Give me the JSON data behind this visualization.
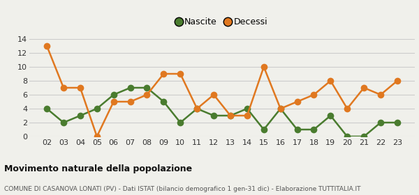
{
  "years": [
    "02",
    "03",
    "04",
    "05",
    "06",
    "07",
    "08",
    "09",
    "10",
    "11",
    "12",
    "13",
    "14",
    "15",
    "16",
    "17",
    "18",
    "19",
    "20",
    "21",
    "22",
    "23"
  ],
  "nascite": [
    4,
    2,
    3,
    4,
    6,
    7,
    7,
    5,
    2,
    4,
    3,
    3,
    4,
    1,
    4,
    1,
    1,
    3,
    0,
    0,
    2,
    2
  ],
  "decessi": [
    13,
    7,
    7,
    0,
    5,
    5,
    6,
    9,
    9,
    4,
    6,
    3,
    3,
    10,
    4,
    5,
    6,
    8,
    4,
    7,
    6,
    8
  ],
  "nascite_color": "#4a7c2f",
  "decessi_color": "#e07820",
  "background_color": "#f0f0eb",
  "grid_color": "#cccccc",
  "ylim": [
    0,
    14
  ],
  "yticks": [
    0,
    2,
    4,
    6,
    8,
    10,
    12,
    14
  ],
  "title": "Movimento naturale della popolazione",
  "subtitle": "COMUNE DI CASANOVA LONATI (PV) - Dati ISTAT (bilancio demografico 1 gen-31 dic) - Elaborazione TUTTITALIA.IT",
  "legend_nascite": "Nascite",
  "legend_decessi": "Decessi",
  "marker_size": 7,
  "line_width": 1.8,
  "tick_fontsize": 8,
  "title_fontsize": 9,
  "subtitle_fontsize": 6.5
}
